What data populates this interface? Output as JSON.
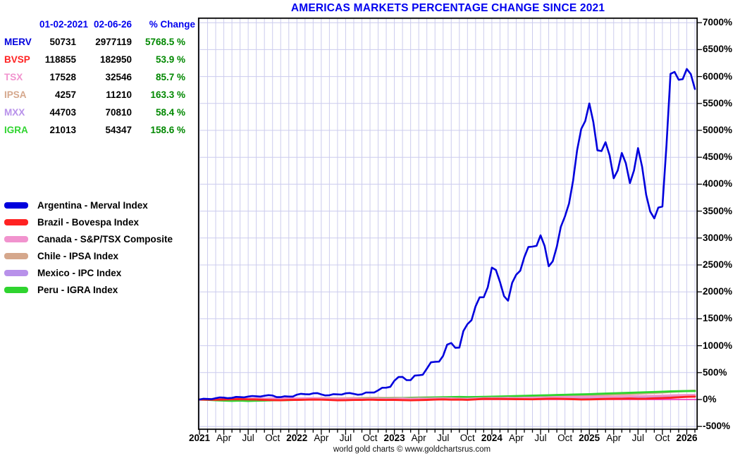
{
  "title": "AMERICAS MARKETS PERCENTAGE CHANGE SINCE 2021",
  "footer": "world gold charts © www.goldchartsrus.com",
  "colors": {
    "title_blue": "#0000ee",
    "header_blue": "#0000ee",
    "change_green": "#008800",
    "grid": "#ccccee",
    "frame": "#000000",
    "zero_line": "#ee22bb",
    "merv_blue": "#0000dd",
    "bvsp_red": "#ff2222",
    "tsx_pink": "#f193ce",
    "ipsa_tan": "#d5a78c",
    "mxx_purple": "#b891ea",
    "igra_green": "#2fd42f"
  },
  "table": {
    "headers": [
      "01-02-2021",
      "02-06-26",
      "% Change"
    ],
    "rows": [
      {
        "name": "MERV",
        "color": "#0000dd",
        "start": "50731",
        "end": "2977119",
        "change": "5768.5 %"
      },
      {
        "name": "BVSP",
        "color": "#ff2222",
        "start": "118855",
        "end": "182950",
        "change": "53.9 %"
      },
      {
        "name": "TSX",
        "color": "#f193ce",
        "start": "17528",
        "end": "32546",
        "change": "85.7 %"
      },
      {
        "name": "IPSA",
        "color": "#d5a78c",
        "start": "4257",
        "end": "11210",
        "change": "163.3 %"
      },
      {
        "name": "MXX",
        "color": "#b891ea",
        "start": "44703",
        "end": "70810",
        "change": "58.4 %"
      },
      {
        "name": "IGRA",
        "color": "#2fd42f",
        "start": "21013",
        "end": "54347",
        "change": "158.6 %"
      }
    ]
  },
  "legend": {
    "position": "left",
    "items": [
      {
        "label": "Argentina - Merval Index",
        "color": "#0000dd"
      },
      {
        "label": "Brazil - Bovespa Index",
        "color": "#ff2222"
      },
      {
        "label": "Canada - S&P/TSX Composite",
        "color": "#f193ce"
      },
      {
        "label": "Chile - IPSA Index",
        "color": "#d5a78c"
      },
      {
        "label": "Mexico - IPC Index",
        "color": "#b891ea"
      },
      {
        "label": "Peru - IGRA Index",
        "color": "#2fd42f"
      }
    ]
  },
  "chart_data": {
    "type": "line",
    "title": "AMERICAS MARKETS PERCENTAGE CHANGE SINCE 2021",
    "x_unit": "month",
    "x_start": "2021-01",
    "x_end": "2026-02",
    "grid": true,
    "zero_line": 0,
    "ylabel_suffix": "%",
    "ylim": [
      -563,
      7095
    ],
    "y_ticks": [
      7000,
      6500,
      6000,
      5500,
      5000,
      4500,
      4000,
      3500,
      3000,
      2500,
      2000,
      1500,
      1000,
      500,
      0,
      -500
    ],
    "x_tick_labels": [
      {
        "label": "2021",
        "bold": true
      },
      {
        "label": "Apr",
        "bold": false
      },
      {
        "label": "Jul",
        "bold": false
      },
      {
        "label": "Oct",
        "bold": false
      },
      {
        "label": "2022",
        "bold": true
      },
      {
        "label": "Apr",
        "bold": false
      },
      {
        "label": "Jul",
        "bold": false
      },
      {
        "label": "Oct",
        "bold": false
      },
      {
        "label": "2023",
        "bold": true
      },
      {
        "label": "Apr",
        "bold": false
      },
      {
        "label": "Jul",
        "bold": false
      },
      {
        "label": "Oct",
        "bold": false
      },
      {
        "label": "2024",
        "bold": true
      },
      {
        "label": "Apr",
        "bold": false
      },
      {
        "label": "Jul",
        "bold": false
      },
      {
        "label": "Oct",
        "bold": false
      },
      {
        "label": "2025",
        "bold": true
      },
      {
        "label": "Apr",
        "bold": false
      },
      {
        "label": "Jul",
        "bold": false
      },
      {
        "label": "Oct",
        "bold": false
      },
      {
        "label": "2026",
        "bold": true
      }
    ],
    "series": [
      {
        "name": "Argentina - Merval Index",
        "ticker": "MERV",
        "color": "#0000dd",
        "values": [
          0,
          10,
          25,
          35,
          30,
          45,
          55,
          60,
          70,
          75,
          45,
          55,
          90,
          100,
          115,
          95,
          80,
          95,
          115,
          105,
          95,
          130,
          170,
          220,
          350,
          420,
          360,
          450,
          575,
          700,
          810,
          1050,
          965,
          1400,
          1730,
          1900,
          2450,
          2185,
          1835,
          2320,
          2645,
          2840,
          3050,
          2475,
          2840,
          3400,
          4060,
          5025,
          5500,
          4630,
          4780,
          4110,
          4580,
          4020,
          4670,
          3800,
          3365,
          3585,
          6050,
          5940,
          6140,
          5768.5
        ]
      },
      {
        "name": "Brazil - Bovespa Index",
        "ticker": "BVSP",
        "color": "#ff2222",
        "values": [
          0,
          -2,
          -4,
          0,
          4,
          6,
          2,
          0,
          -6,
          -10,
          -14,
          -8,
          -6,
          -4,
          0,
          -2,
          -8,
          -14,
          -12,
          -8,
          -6,
          -3,
          -6,
          -8,
          -6,
          -10,
          -14,
          -11,
          -6,
          -1,
          3,
          -3,
          -1,
          -5,
          3,
          12,
          10,
          11,
          9,
          7,
          5,
          4,
          9,
          14,
          15,
          11,
          7,
          1,
          3,
          6,
          10,
          13,
          15,
          18,
          13,
          16,
          22,
          27,
          33,
          42,
          50,
          53.9
        ]
      },
      {
        "name": "Canada - S&P/TSX Composite",
        "ticker": "TSX",
        "color": "#f193ce",
        "values": [
          0,
          3,
          7,
          11,
          14,
          16,
          16,
          18,
          15,
          19,
          21,
          22,
          19,
          21,
          23,
          18,
          14,
          9,
          12,
          14,
          8,
          11,
          15,
          12,
          16,
          18,
          15,
          18,
          17,
          20,
          22,
          19,
          16,
          14,
          19,
          24,
          26,
          28,
          31,
          28,
          33,
          35,
          38,
          40,
          44,
          47,
          51,
          48,
          50,
          53,
          51,
          49,
          56,
          59,
          63,
          66,
          69,
          73,
          77,
          81,
          84,
          85.7
        ]
      },
      {
        "name": "Chile - IPSA Index",
        "ticker": "IPSA",
        "color": "#d5a78c",
        "values": [
          0,
          6,
          12,
          16,
          12,
          8,
          3,
          6,
          1,
          -2,
          5,
          3,
          9,
          14,
          20,
          26,
          23,
          19,
          23,
          28,
          25,
          30,
          32,
          29,
          31,
          29,
          33,
          36,
          39,
          41,
          43,
          39,
          37,
          35,
          39,
          43,
          46,
          49,
          53,
          56,
          59,
          57,
          61,
          63,
          59,
          61,
          65,
          63,
          69,
          76,
          83,
          91,
          96,
          101,
          109,
          116,
          123,
          131,
          141,
          151,
          159,
          163.3
        ]
      },
      {
        "name": "Mexico - IPC Index",
        "ticker": "MXX",
        "color": "#b891ea",
        "values": [
          0,
          2,
          5,
          9,
          11,
          13,
          15,
          16,
          17,
          18,
          16,
          19,
          21,
          23,
          25,
          21,
          19,
          17,
          15,
          13,
          11,
          15,
          17,
          16,
          18,
          20,
          22,
          25,
          27,
          29,
          31,
          29,
          27,
          25,
          27,
          29,
          31,
          33,
          35,
          33,
          31,
          29,
          31,
          33,
          31,
          29,
          31,
          29,
          31,
          34,
          37,
          39,
          41,
          43,
          45,
          47,
          49,
          51,
          53,
          55,
          57,
          58.4
        ]
      },
      {
        "name": "Peru - IGRA Index",
        "ticker": "IGRA",
        "color": "#2fd42f",
        "values": [
          0,
          -5,
          -14,
          -20,
          -25,
          -21,
          -27,
          -22,
          -18,
          -15,
          -12,
          -10,
          -5,
          0,
          5,
          8,
          10,
          6,
          4,
          8,
          12,
          15,
          18,
          20,
          22,
          25,
          28,
          30,
          34,
          38,
          42,
          45,
          48,
          44,
          46,
          50,
          52,
          56,
          60,
          64,
          68,
          72,
          76,
          80,
          84,
          88,
          92,
          96,
          100,
          105,
          110,
          115,
          120,
          125,
          130,
          135,
          140,
          145,
          150,
          154,
          157,
          158.6
        ]
      }
    ]
  }
}
